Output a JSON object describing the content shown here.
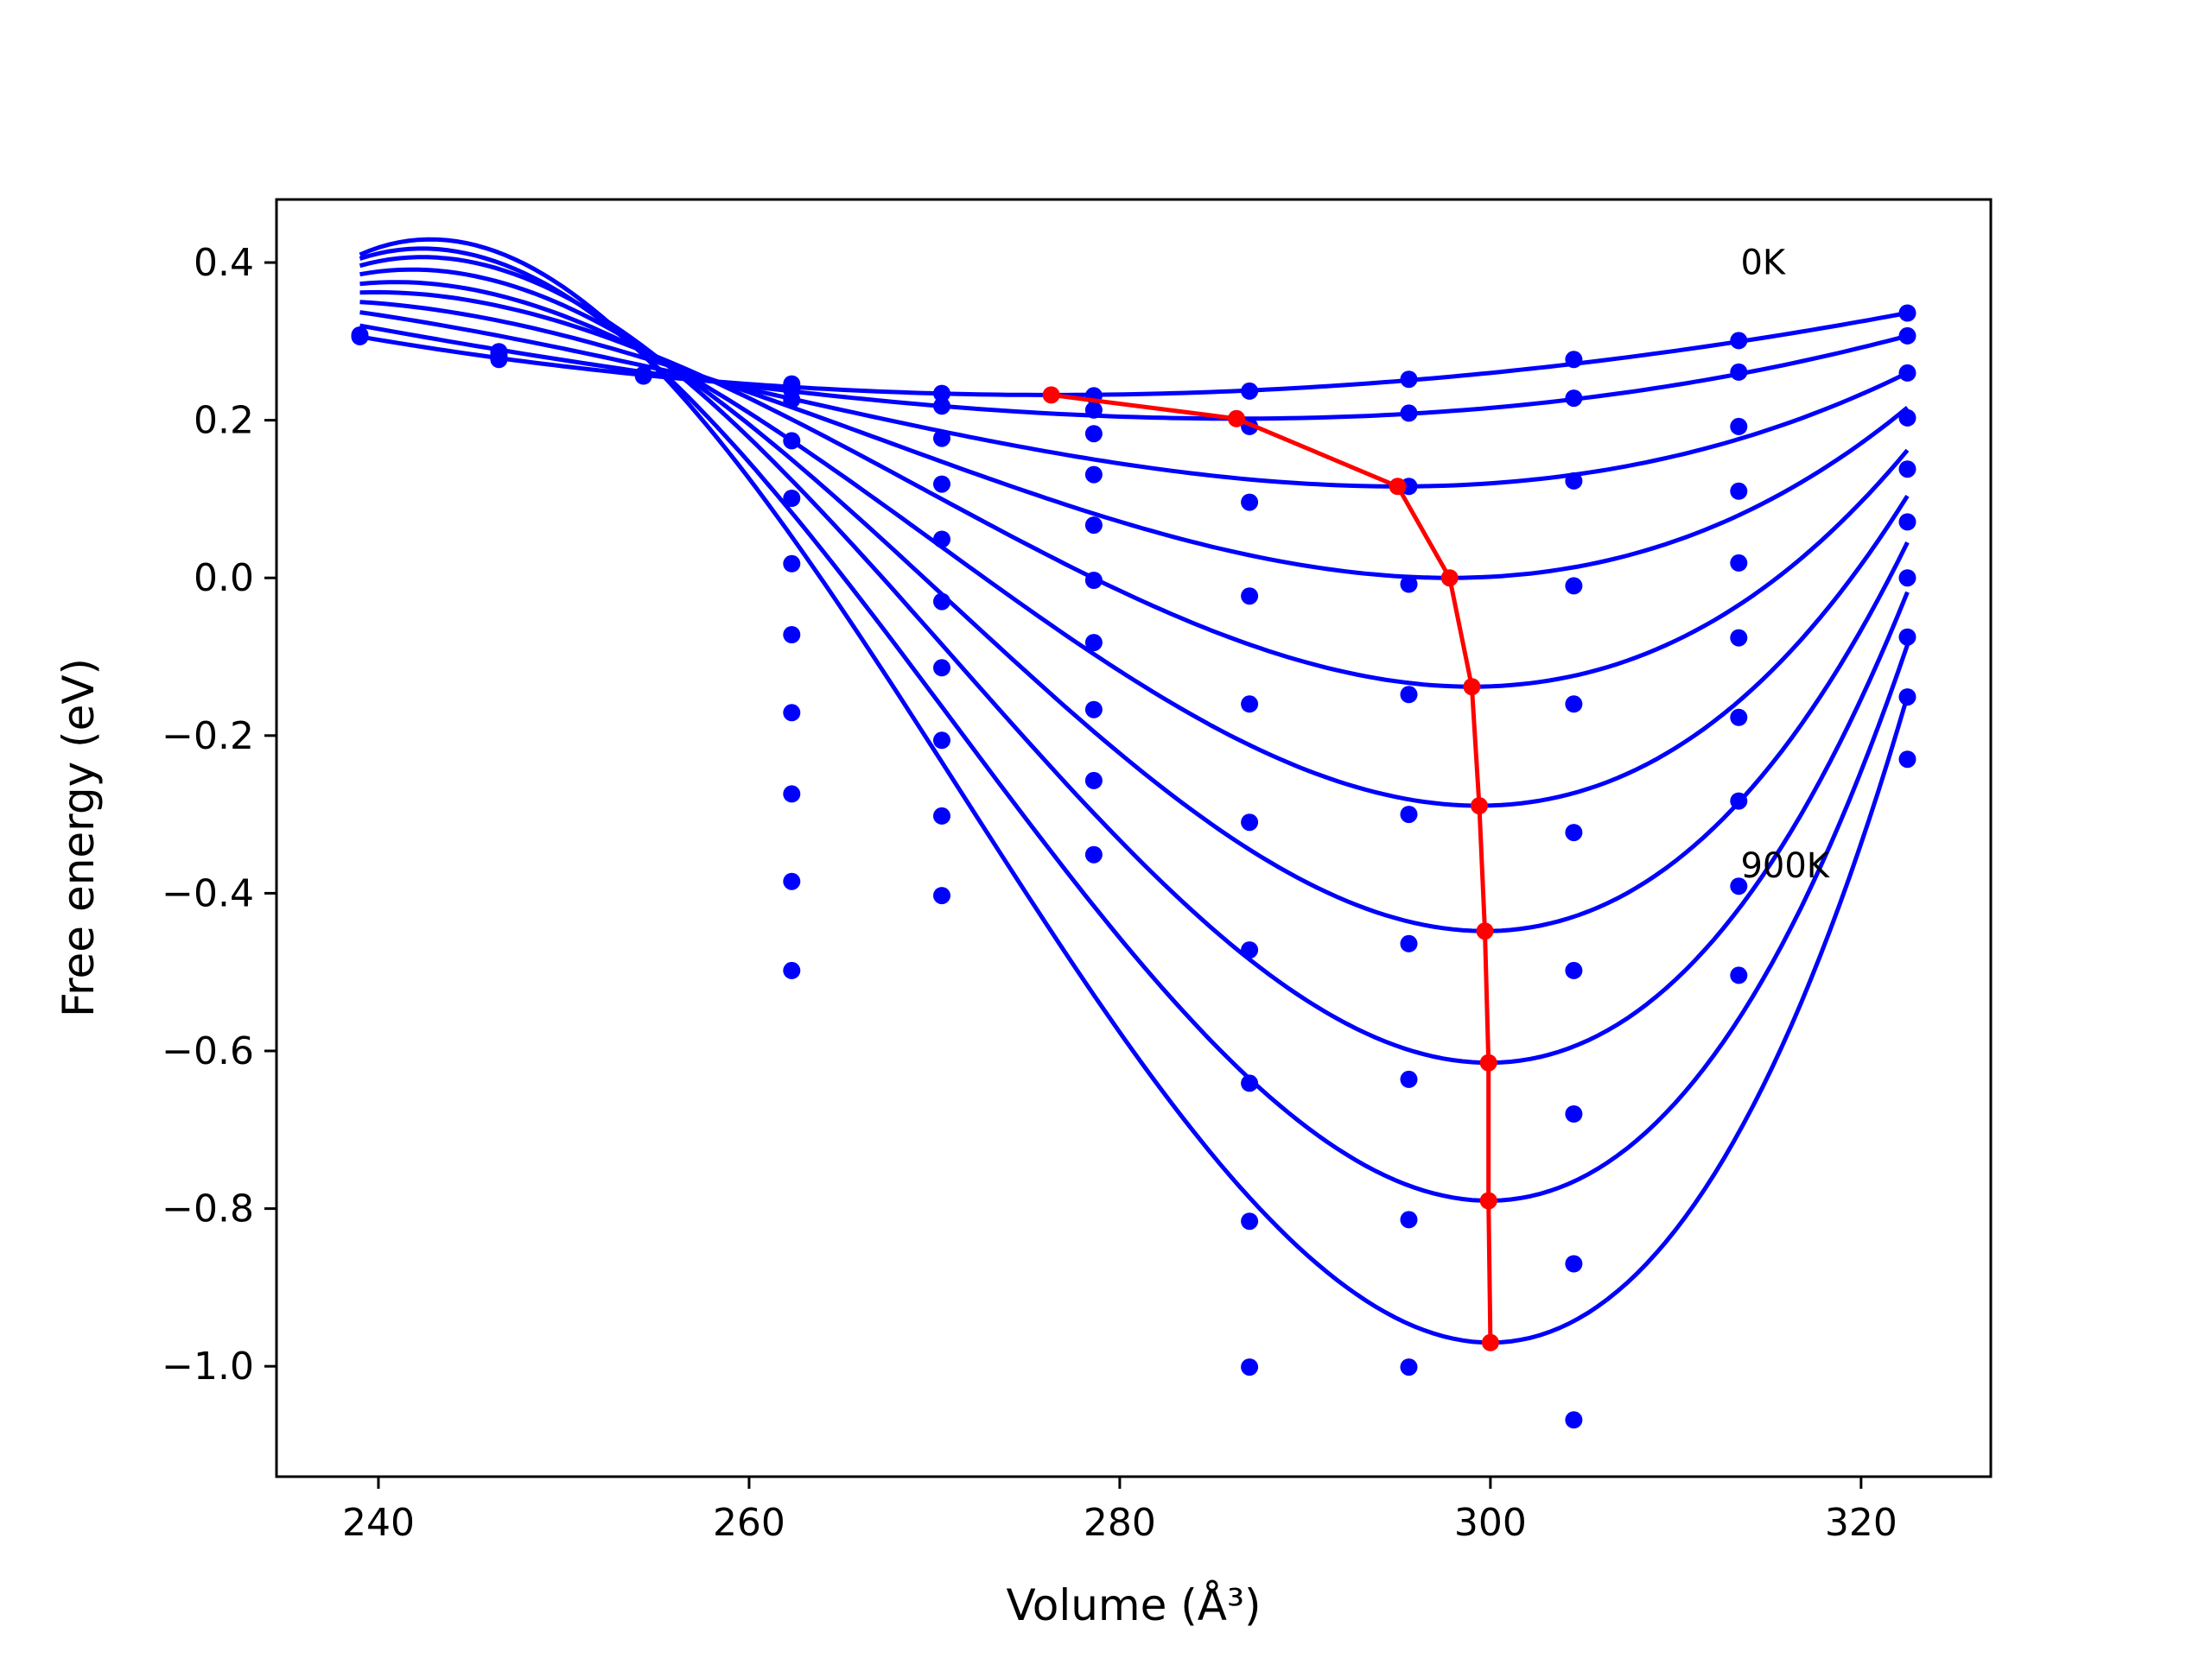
{
  "chart_data": {
    "type": "line",
    "xlabel": "Volume (Å³)",
    "ylabel": "Free energy (eV)",
    "xlim": [
      234.5,
      327
    ],
    "ylim": [
      -1.14,
      0.48
    ],
    "xticks": [
      240,
      260,
      280,
      300,
      320
    ],
    "yticks": [
      0.4,
      0.2,
      0.0,
      -0.2,
      -0.4,
      -0.6,
      -0.8,
      -1.0
    ],
    "ytick_labels": [
      "0.4",
      "0.2",
      "0.0",
      "−0.2",
      "−0.4",
      "−0.6",
      "−0.8",
      "−1.0"
    ],
    "grid": false,
    "annotations": [
      {
        "text": "0K",
        "x": 313.5,
        "y": 0.385
      },
      {
        "text": "900K",
        "x": 313.5,
        "y": -0.38
      }
    ],
    "colors": {
      "fit": "#0000ff",
      "points": "#0000ff",
      "minima": "#ff0000"
    },
    "fit_volume_range": [
      239,
      322.5
    ],
    "fit_curves": [
      {
        "V0": 276.3,
        "F0": 0.232,
        "Fstart": 0.306,
        "Fend": 0.336
      },
      {
        "V0": 286.3,
        "F0": 0.202,
        "Fstart": 0.32,
        "Fend": 0.307
      },
      {
        "V0": 295.0,
        "F0": 0.116,
        "Fstart": 0.337,
        "Fend": 0.26
      },
      {
        "V0": 297.8,
        "F0": 0.0,
        "Fstart": 0.35,
        "Fend": 0.216
      },
      {
        "V0": 299.0,
        "F0": -0.138,
        "Fstart": 0.362,
        "Fend": 0.162
      },
      {
        "V0": 299.4,
        "F0": -0.289,
        "Fstart": 0.373,
        "Fend": 0.104
      },
      {
        "V0": 299.7,
        "F0": -0.448,
        "Fstart": 0.385,
        "Fend": 0.045
      },
      {
        "V0": 299.9,
        "F0": -0.615,
        "Fstart": 0.396,
        "Fend": -0.018
      },
      {
        "V0": 299.9,
        "F0": -0.79,
        "Fstart": 0.405,
        "Fend": -0.085
      },
      {
        "V0": 300.0,
        "F0": -0.97,
        "Fstart": 0.41,
        "Fend": -0.15
      }
    ],
    "data_points": [
      {
        "x": 239,
        "y": [
          0.306,
          0.308
        ]
      },
      {
        "x": 246.5,
        "y": [
          0.287,
          0.283,
          0.28,
          0.277
        ]
      },
      {
        "x": 254.3,
        "y": [
          0.258,
          0.256
        ]
      },
      {
        "x": 262.3,
        "y": [
          0.246,
          0.238,
          0.226,
          0.174,
          0.101,
          0.018,
          -0.072,
          -0.171,
          -0.274,
          -0.385,
          -0.498
        ]
      },
      {
        "x": 270.4,
        "y": [
          0.234,
          0.218,
          0.177,
          0.119,
          0.049,
          -0.03,
          -0.114,
          -0.206,
          -0.302,
          -0.403
        ]
      },
      {
        "x": 278.6,
        "y": [
          0.231,
          0.213,
          0.183,
          0.131,
          0.067,
          -0.003,
          -0.082,
          -0.167,
          -0.257,
          -0.351
        ]
      },
      {
        "x": 287.0,
        "y": [
          0.237,
          0.192,
          0.096,
          -0.023,
          -0.16,
          -0.31,
          -0.472,
          -0.641,
          -0.816,
          -1.001
        ]
      },
      {
        "x": 295.6,
        "y": [
          0.252,
          0.209,
          0.116,
          -0.008,
          -0.148,
          -0.3,
          -0.464,
          -0.636,
          -0.814,
          -1.001
        ]
      },
      {
        "x": 304.5,
        "y": [
          0.277,
          0.228,
          0.123,
          -0.01,
          -0.16,
          -0.323,
          -0.498,
          -0.68,
          -0.87,
          -1.068
        ]
      },
      {
        "x": 313.4,
        "y": [
          0.301,
          0.261,
          0.192,
          0.11,
          0.019,
          -0.076,
          -0.177,
          -0.283,
          -0.391,
          -0.504
        ]
      },
      {
        "x": 322.5,
        "y": [
          0.336,
          0.307,
          0.26,
          0.203,
          0.138,
          0.071,
          0.0,
          -0.075,
          -0.151,
          -0.23
        ]
      }
    ],
    "minima_curve": {
      "x": [
        276.3,
        286.3,
        295.0,
        297.8,
        299.0,
        299.4,
        299.7,
        299.9,
        299.9,
        300.0
      ],
      "y": [
        0.232,
        0.202,
        0.116,
        0.0,
        -0.138,
        -0.289,
        -0.448,
        -0.615,
        -0.79,
        -0.97
      ]
    }
  }
}
